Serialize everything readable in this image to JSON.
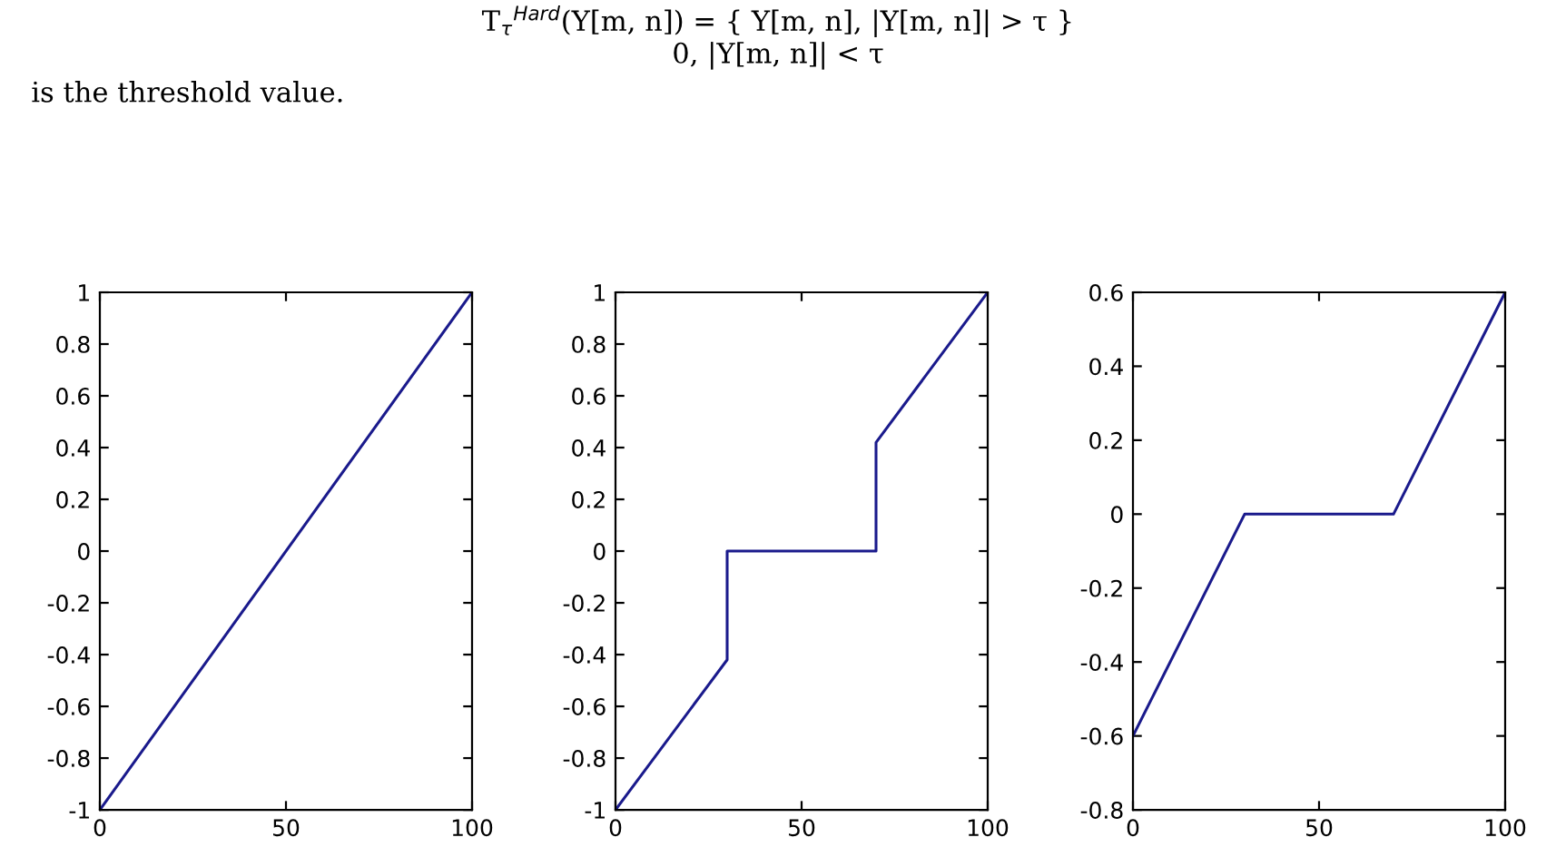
{
  "chart_data": [
    {
      "type": "line",
      "x": [
        0,
        100
      ],
      "values": [
        -1,
        1
      ],
      "color": "#1a1a8c",
      "xlim": [
        0,
        100
      ],
      "xticks": [
        0,
        50,
        100
      ],
      "ylim": [
        -1,
        1
      ],
      "yticks": [
        -1,
        -0.8,
        -0.6,
        -0.4,
        -0.2,
        0,
        0.2,
        0.4,
        0.6,
        0.8,
        1
      ],
      "grid": false,
      "annotations": [
        "T$_{τ}$$^{Hard}$(Y[m, n]) = { Y[m, n], |Y[m, n]| > τ }",
        "0, |Y[m, n]| < τ",
        "is the threshold value."
      ]
    },
    {
      "type": "line",
      "x": [
        0,
        30,
        30,
        70,
        70,
        100
      ],
      "values": [
        -1,
        -0.42,
        0,
        0,
        0.42,
        1
      ],
      "color": "#1a1a8c",
      "xlim": [
        0,
        100
      ],
      "xticks": [
        0,
        50,
        100
      ],
      "ylim": [
        -1,
        1
      ],
      "yticks": [
        -1,
        -0.8,
        -0.6,
        -0.4,
        -0.2,
        0,
        0.2,
        0.4,
        0.6,
        0.8,
        1
      ],
      "grid": false
    },
    {
      "type": "line",
      "x": [
        0,
        30,
        70,
        100
      ],
      "values": [
        -0.6,
        0,
        0,
        0.6
      ],
      "color": "#1a1a8c",
      "xlim": [
        0,
        100
      ],
      "xticks": [
        0,
        50,
        100
      ],
      "ylim": [
        -0.8,
        0.6
      ],
      "yticks": [
        -0.8,
        -0.6,
        -0.4,
        -0.2,
        0,
        0.2,
        0.4,
        0.6
      ],
      "grid": false
    }
  ]
}
